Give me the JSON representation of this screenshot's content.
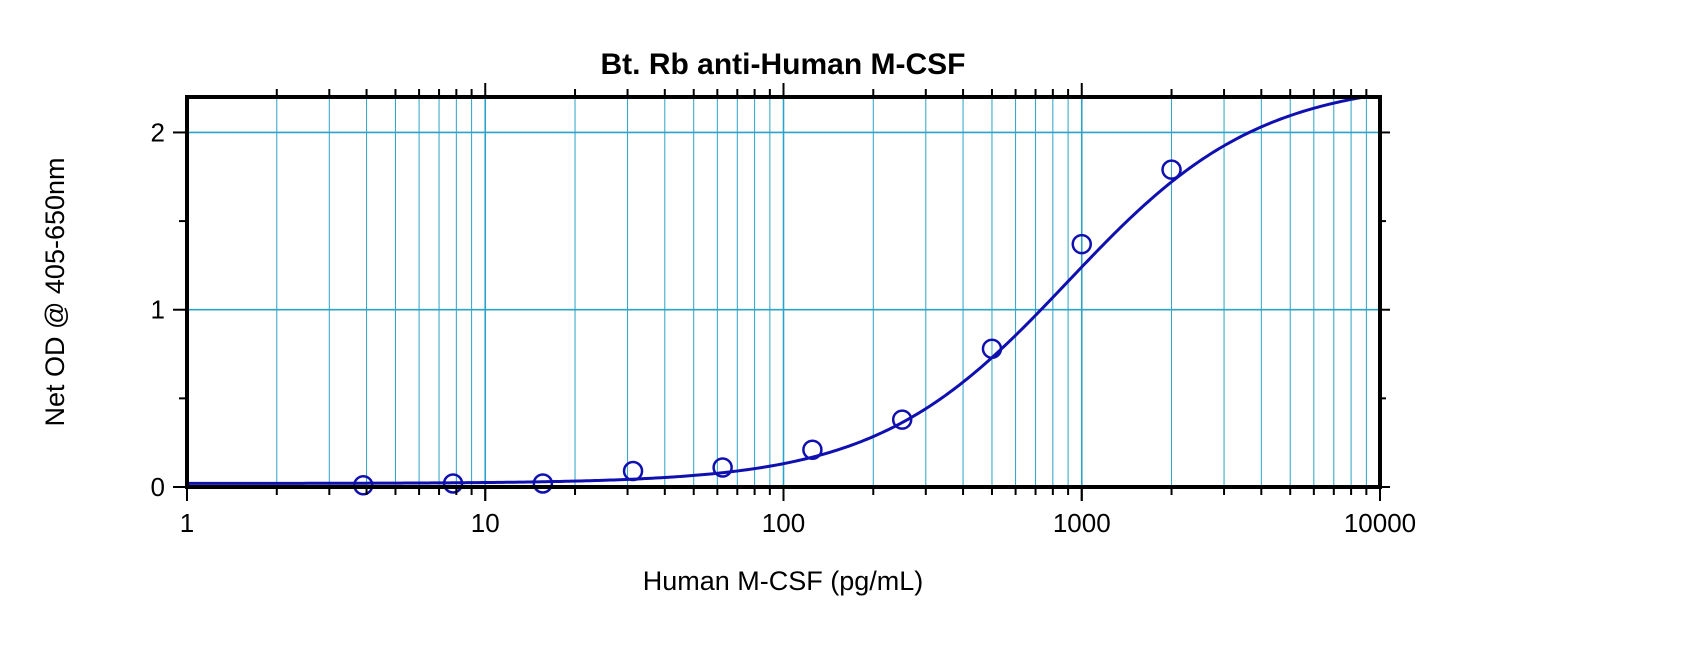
{
  "chart_data": {
    "type": "scatter",
    "title": "Bt. Rb anti-Human M-CSF",
    "xlabel": "Human M-CSF (pg/mL)",
    "ylabel": "Net OD @ 405-650nm",
    "x_scale": "log",
    "xlim": [
      1,
      10000
    ],
    "ylim": [
      0,
      2.2
    ],
    "x_ticks": [
      1,
      10,
      100,
      1000,
      10000
    ],
    "x_tick_labels": [
      "1",
      "10",
      "100",
      "1000",
      "10000"
    ],
    "y_ticks": [
      0,
      1,
      2
    ],
    "y_tick_labels": [
      "0",
      "1",
      "2"
    ],
    "grid": true,
    "series": [
      {
        "marker": "open-circle",
        "color": "#1010b0",
        "x": [
          3.9,
          7.8,
          15.6,
          31.3,
          62.5,
          125,
          250,
          500,
          1000,
          2000
        ],
        "y": [
          0.01,
          0.02,
          0.02,
          0.09,
          0.11,
          0.21,
          0.38,
          0.78,
          1.37,
          1.79
        ]
      }
    ],
    "fit_curve": {
      "model": "4PL",
      "min": 0.02,
      "max": 2.3,
      "ec50": 900,
      "hill": 1.35,
      "color": "#1010b0"
    }
  }
}
